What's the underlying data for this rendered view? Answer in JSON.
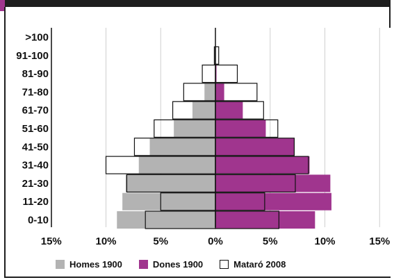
{
  "chart_data": {
    "type": "bar",
    "orientation": "horizontal-population-pyramid",
    "categories": [
      ">100",
      "91-100",
      "81-90",
      "71-80",
      "61-70",
      "51-60",
      "41-50",
      "31-40",
      "21-30",
      "11-20",
      "0-10"
    ],
    "x_ticks": [
      "15%",
      "10%",
      "5%",
      "0%",
      "5%",
      "10%",
      "15%"
    ],
    "xlim": [
      -15,
      15
    ],
    "grid": true,
    "legend_position": "bottom",
    "series": [
      {
        "name": "Homes 1900",
        "side": "left",
        "color": "#b3b3b3",
        "values": [
          0,
          0,
          0,
          1.0,
          2.1,
          3.8,
          6.0,
          7.0,
          8.2,
          8.5,
          9.0
        ]
      },
      {
        "name": "Dones 1900",
        "side": "right",
        "color": "#a0358e",
        "values": [
          0,
          0,
          0.1,
          0.8,
          2.5,
          4.6,
          7.2,
          8.6,
          10.5,
          10.6,
          9.1
        ]
      },
      {
        "name": "Mataró 2008",
        "side": "both",
        "color": "#ffffff",
        "outline": "#111111",
        "left_values": [
          0,
          0.1,
          1.2,
          2.9,
          3.9,
          5.6,
          7.4,
          10.0,
          8.1,
          5.0,
          6.4
        ],
        "right_values": [
          0,
          0.3,
          2.0,
          3.8,
          4.4,
          5.7,
          7.2,
          8.5,
          7.3,
          4.5,
          5.8
        ]
      }
    ]
  }
}
